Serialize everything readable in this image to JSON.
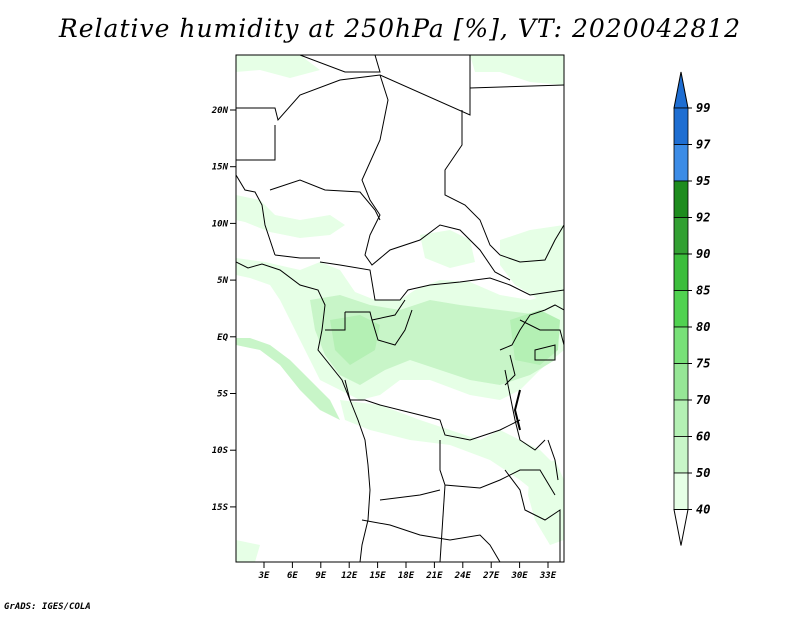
{
  "title": "Relative humidity at 250hPa [%], VT: 2020042812",
  "footer": "GrADS: IGES/COLA",
  "lat_ticks": [
    "20N",
    "15N",
    "10N",
    "5N",
    "EQ",
    "5S",
    "10S",
    "15S"
  ],
  "lon_ticks": [
    "3E",
    "6E",
    "9E",
    "12E",
    "15E",
    "18E",
    "21E",
    "24E",
    "27E",
    "30E",
    "33E"
  ],
  "colorbar": {
    "labels": [
      "99",
      "97",
      "95",
      "92",
      "90",
      "85",
      "80",
      "75",
      "70",
      "60",
      "50",
      "40"
    ],
    "colors": [
      "#1e6ed2",
      "#3c8ce6",
      "#1e8c1e",
      "#32a032",
      "#3cbe3c",
      "#50d250",
      "#78e178",
      "#96e696",
      "#b4f0b4",
      "#c8f5c8",
      "#e6ffe6"
    ]
  }
}
